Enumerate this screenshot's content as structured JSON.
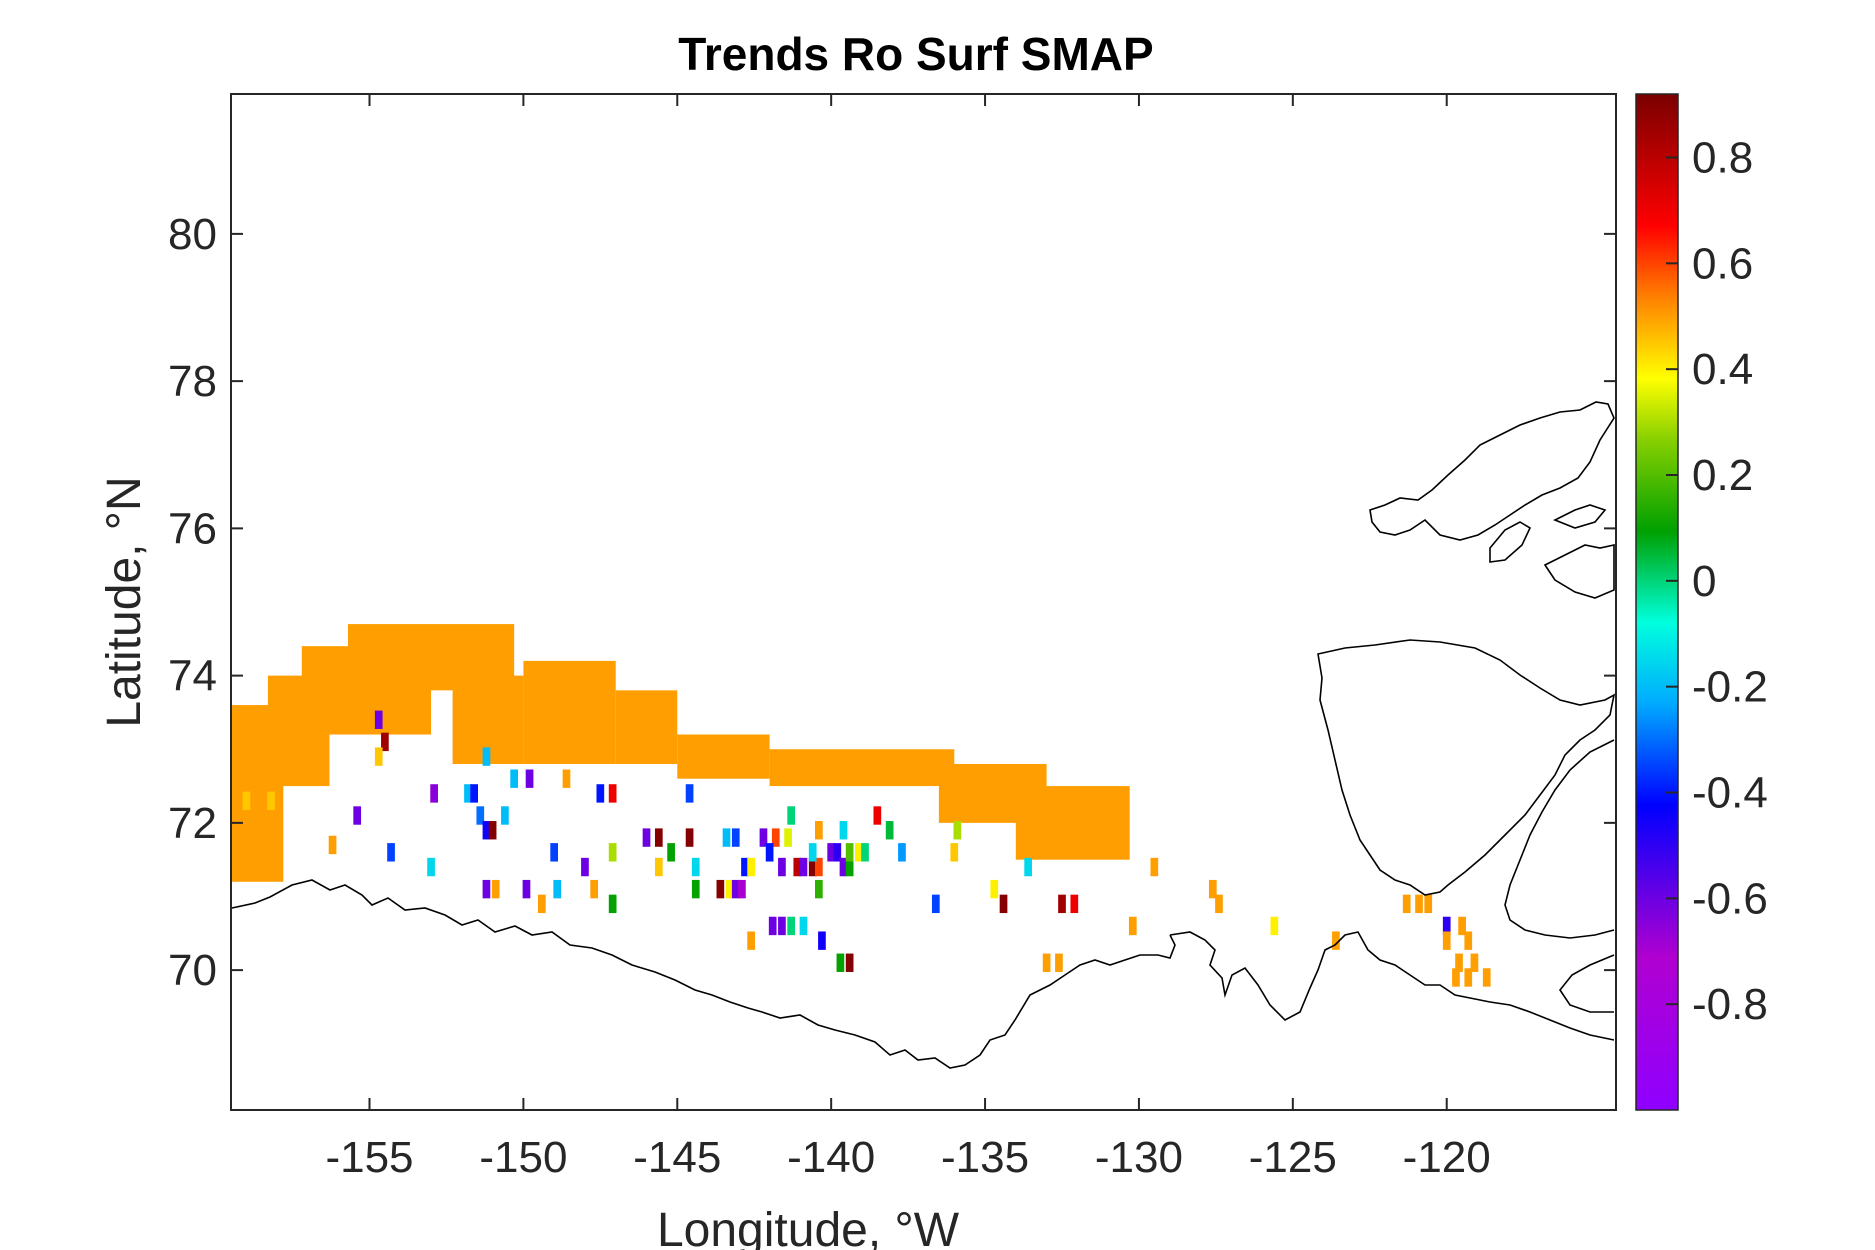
{
  "chart_data": {
    "type": "heatmap",
    "title": "Trends Ro Surf SMAP",
    "xlabel": "Longitude, °W",
    "ylabel": "Latitude, °N",
    "xlim": [
      -159.5,
      -114.5
    ],
    "ylim": [
      68.1,
      81.9
    ],
    "xticks": [
      -155,
      -150,
      -145,
      -140,
      -135,
      -130,
      -125,
      -120
    ],
    "yticks": [
      70,
      72,
      74,
      76,
      78,
      80
    ],
    "colorbar": {
      "range": [
        -1,
        0.92
      ],
      "ticks": [
        -0.8,
        -0.6,
        -0.4,
        -0.2,
        0,
        0.2,
        0.4,
        0.6,
        0.8
      ],
      "colormap": "rainbow"
    },
    "grid": false,
    "background_value": 0.5,
    "region_band": [
      {
        "lon": [
          -159.5,
          -157.8
        ],
        "lat": [
          71.2,
          73.6
        ]
      },
      {
        "lon": [
          -158.3,
          -156.3
        ],
        "lat": [
          72.5,
          74.0
        ]
      },
      {
        "lon": [
          -157.2,
          -153.0
        ],
        "lat": [
          73.2,
          74.4
        ]
      },
      {
        "lon": [
          -155.7,
          -150.3
        ],
        "lat": [
          73.8,
          74.7
        ]
      },
      {
        "lon": [
          -152.3,
          -150.0
        ],
        "lat": [
          72.8,
          74.0
        ]
      },
      {
        "lon": [
          -150.0,
          -147.0
        ],
        "lat": [
          72.8,
          74.2
        ]
      },
      {
        "lon": [
          -147.0,
          -145.0
        ],
        "lat": [
          72.8,
          73.8
        ]
      },
      {
        "lon": [
          -145.0,
          -142.0
        ],
        "lat": [
          72.6,
          73.2
        ]
      },
      {
        "lon": [
          -142.0,
          -136.0
        ],
        "lat": [
          72.5,
          73.0
        ]
      },
      {
        "lon": [
          -136.5,
          -133.0
        ],
        "lat": [
          72.0,
          72.8
        ]
      },
      {
        "lon": [
          -134.0,
          -130.3
        ],
        "lat": [
          71.5,
          72.5
        ]
      }
    ],
    "points": [
      {
        "lon": -159.0,
        "lat": 72.3,
        "v": 0.45
      },
      {
        "lon": -158.2,
        "lat": 72.3,
        "v": 0.45
      },
      {
        "lon": -154.7,
        "lat": 73.4,
        "v": -0.6
      },
      {
        "lon": -154.5,
        "lat": 73.1,
        "v": 0.85
      },
      {
        "lon": -154.7,
        "lat": 72.9,
        "v": 0.45
      },
      {
        "lon": -155.4,
        "lat": 72.1,
        "v": -0.6
      },
      {
        "lon": -156.2,
        "lat": 71.7,
        "v": 0.5
      },
      {
        "lon": -152.9,
        "lat": 72.4,
        "v": -0.65
      },
      {
        "lon": -151.8,
        "lat": 72.4,
        "v": -0.2
      },
      {
        "lon": -151.6,
        "lat": 72.4,
        "v": -0.4
      },
      {
        "lon": -151.4,
        "lat": 72.1,
        "v": -0.3
      },
      {
        "lon": -151.2,
        "lat": 71.9,
        "v": -0.45
      },
      {
        "lon": -151.0,
        "lat": 71.9,
        "v": 0.9
      },
      {
        "lon": -150.6,
        "lat": 72.1,
        "v": -0.2
      },
      {
        "lon": -151.2,
        "lat": 72.9,
        "v": -0.2
      },
      {
        "lon": -150.3,
        "lat": 72.6,
        "v": -0.2
      },
      {
        "lon": -149.8,
        "lat": 72.6,
        "v": -0.6
      },
      {
        "lon": -148.6,
        "lat": 72.6,
        "v": 0.5
      },
      {
        "lon": -147.5,
        "lat": 72.4,
        "v": -0.4
      },
      {
        "lon": -147.1,
        "lat": 72.4,
        "v": 0.7
      },
      {
        "lon": -144.6,
        "lat": 72.4,
        "v": -0.35
      },
      {
        "lon": -153.0,
        "lat": 71.4,
        "v": -0.15
      },
      {
        "lon": -154.3,
        "lat": 71.6,
        "v": -0.35
      },
      {
        "lon": -151.2,
        "lat": 71.1,
        "v": -0.6
      },
      {
        "lon": -150.9,
        "lat": 71.1,
        "v": 0.5
      },
      {
        "lon": -149.9,
        "lat": 71.1,
        "v": -0.6
      },
      {
        "lon": -149.4,
        "lat": 70.9,
        "v": 0.5
      },
      {
        "lon": -149.0,
        "lat": 71.6,
        "v": -0.35
      },
      {
        "lon": -148.9,
        "lat": 71.1,
        "v": -0.2
      },
      {
        "lon": -148.0,
        "lat": 71.4,
        "v": -0.6
      },
      {
        "lon": -147.7,
        "lat": 71.1,
        "v": 0.5
      },
      {
        "lon": -147.1,
        "lat": 71.6,
        "v": 0.3
      },
      {
        "lon": -147.1,
        "lat": 70.9,
        "v": 0.1
      },
      {
        "lon": -145.6,
        "lat": 71.4,
        "v": 0.45
      },
      {
        "lon": -146.0,
        "lat": 71.8,
        "v": -0.6
      },
      {
        "lon": -145.6,
        "lat": 71.8,
        "v": 0.9
      },
      {
        "lon": -145.2,
        "lat": 71.6,
        "v": 0.1
      },
      {
        "lon": -144.6,
        "lat": 71.8,
        "v": 0.9
      },
      {
        "lon": -144.4,
        "lat": 71.4,
        "v": -0.15
      },
      {
        "lon": -144.4,
        "lat": 71.1,
        "v": 0.1
      },
      {
        "lon": -143.6,
        "lat": 71.1,
        "v": 0.9
      },
      {
        "lon": -143.3,
        "lat": 71.1,
        "v": 0.4
      },
      {
        "lon": -143.1,
        "lat": 71.1,
        "v": -0.6
      },
      {
        "lon": -142.9,
        "lat": 71.1,
        "v": -0.7
      },
      {
        "lon": -142.8,
        "lat": 71.4,
        "v": -0.4
      },
      {
        "lon": -143.4,
        "lat": 71.8,
        "v": -0.2
      },
      {
        "lon": -143.1,
        "lat": 71.8,
        "v": -0.35
      },
      {
        "lon": -142.2,
        "lat": 71.8,
        "v": -0.6
      },
      {
        "lon": -141.8,
        "lat": 71.8,
        "v": 0.6
      },
      {
        "lon": -141.4,
        "lat": 71.8,
        "v": 0.35
      },
      {
        "lon": -141.3,
        "lat": 72.1,
        "v": 0.0
      },
      {
        "lon": -142.6,
        "lat": 71.4,
        "v": 0.4
      },
      {
        "lon": -142.0,
        "lat": 71.6,
        "v": -0.4
      },
      {
        "lon": -141.6,
        "lat": 71.4,
        "v": -0.6
      },
      {
        "lon": -141.1,
        "lat": 71.4,
        "v": 0.8
      },
      {
        "lon": -140.9,
        "lat": 71.4,
        "v": -0.6
      },
      {
        "lon": -140.6,
        "lat": 71.4,
        "v": 0.9
      },
      {
        "lon": -140.4,
        "lat": 71.4,
        "v": 0.6
      },
      {
        "lon": -140.6,
        "lat": 71.6,
        "v": -0.15
      },
      {
        "lon": -140.0,
        "lat": 71.6,
        "v": -0.6
      },
      {
        "lon": -139.8,
        "lat": 71.6,
        "v": -0.5
      },
      {
        "lon": -139.6,
        "lat": 71.4,
        "v": -0.6
      },
      {
        "lon": -139.4,
        "lat": 71.4,
        "v": 0.1
      },
      {
        "lon": -139.4,
        "lat": 71.6,
        "v": 0.2
      },
      {
        "lon": -139.1,
        "lat": 71.6,
        "v": 0.4
      },
      {
        "lon": -138.9,
        "lat": 71.6,
        "v": 0.0
      },
      {
        "lon": -139.6,
        "lat": 71.9,
        "v": -0.15
      },
      {
        "lon": -140.4,
        "lat": 71.9,
        "v": 0.5
      },
      {
        "lon": -140.4,
        "lat": 71.1,
        "v": 0.15
      },
      {
        "lon": -138.5,
        "lat": 72.1,
        "v": 0.7
      },
      {
        "lon": -138.1,
        "lat": 71.9,
        "v": 0.05
      },
      {
        "lon": -137.7,
        "lat": 71.6,
        "v": -0.25
      },
      {
        "lon": -136.0,
        "lat": 71.6,
        "v": 0.45
      },
      {
        "lon": -135.9,
        "lat": 71.9,
        "v": 0.3
      },
      {
        "lon": -133.6,
        "lat": 71.4,
        "v": -0.15
      },
      {
        "lon": -134.7,
        "lat": 71.1,
        "v": 0.4
      },
      {
        "lon": -134.4,
        "lat": 70.9,
        "v": 0.9
      },
      {
        "lon": -132.5,
        "lat": 70.9,
        "v": 0.85
      },
      {
        "lon": -132.1,
        "lat": 70.9,
        "v": 0.7
      },
      {
        "lon": -136.6,
        "lat": 70.9,
        "v": -0.35
      },
      {
        "lon": -141.9,
        "lat": 70.6,
        "v": -0.6
      },
      {
        "lon": -141.6,
        "lat": 70.6,
        "v": -0.6
      },
      {
        "lon": -141.3,
        "lat": 70.6,
        "v": 0.0
      },
      {
        "lon": -140.9,
        "lat": 70.6,
        "v": -0.15
      },
      {
        "lon": -142.6,
        "lat": 70.4,
        "v": 0.5
      },
      {
        "lon": -140.3,
        "lat": 70.4,
        "v": -0.45
      },
      {
        "lon": -139.7,
        "lat": 70.1,
        "v": 0.1
      },
      {
        "lon": -139.4,
        "lat": 70.1,
        "v": 0.9
      },
      {
        "lon": -133.0,
        "lat": 70.1,
        "v": 0.5
      },
      {
        "lon": -132.6,
        "lat": 70.1,
        "v": 0.5
      },
      {
        "lon": -129.5,
        "lat": 71.4,
        "v": 0.5
      },
      {
        "lon": -130.2,
        "lat": 70.6,
        "v": 0.5
      },
      {
        "lon": -127.6,
        "lat": 71.1,
        "v": 0.5
      },
      {
        "lon": -127.4,
        "lat": 70.9,
        "v": 0.5
      },
      {
        "lon": -125.6,
        "lat": 70.6,
        "v": 0.4
      },
      {
        "lon": -123.6,
        "lat": 70.4,
        "v": 0.5
      },
      {
        "lon": -121.3,
        "lat": 70.9,
        "v": 0.5
      },
      {
        "lon": -120.9,
        "lat": 70.9,
        "v": 0.5
      },
      {
        "lon": -120.6,
        "lat": 70.9,
        "v": 0.5
      },
      {
        "lon": -120.0,
        "lat": 70.6,
        "v": -0.5
      },
      {
        "lon": -120.0,
        "lat": 70.4,
        "v": 0.5
      },
      {
        "lon": -119.5,
        "lat": 70.6,
        "v": 0.5
      },
      {
        "lon": -119.3,
        "lat": 70.4,
        "v": 0.5
      },
      {
        "lon": -119.1,
        "lat": 70.1,
        "v": 0.5
      },
      {
        "lon": -119.7,
        "lat": 69.9,
        "v": 0.5
      },
      {
        "lon": -119.3,
        "lat": 69.9,
        "v": 0.5
      },
      {
        "lon": -118.7,
        "lat": 69.9,
        "v": 0.5
      },
      {
        "lon": -119.6,
        "lat": 70.1,
        "v": 0.5
      }
    ]
  }
}
